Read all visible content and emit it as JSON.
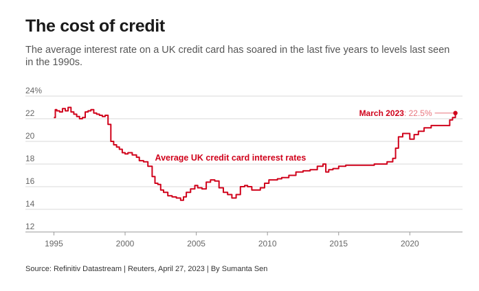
{
  "header": {
    "title": "The cost of credit",
    "subtitle": "The average interest rate on a UK credit card has soared in the last five years to levels last seen in the 1990s."
  },
  "footer": {
    "source": "Source: Refinitiv Datastream | Reuters, April 27, 2023 | By Sumanta Sen"
  },
  "chart_data": {
    "type": "line",
    "title": "The cost of credit",
    "xlabel": "",
    "ylabel": "",
    "xlim": [
      1993,
      2023.7
    ],
    "ylim": [
      12,
      24
    ],
    "x_ticks": [
      1995,
      2000,
      2005,
      2010,
      2015,
      2020
    ],
    "x_tick_labels": [
      "1995",
      "2000",
      "2005",
      "2010",
      "2015",
      "2020"
    ],
    "y_ticks": [
      12,
      14,
      16,
      18,
      20,
      22,
      24
    ],
    "y_tick_labels": [
      "12",
      "14",
      "16",
      "18",
      "20",
      "22",
      "24%"
    ],
    "grid": "horizontal",
    "series": [
      {
        "name": "Average UK credit card interest rates",
        "color": "#d0021b",
        "x": [
          1995.0,
          1995.1,
          1995.2,
          1995.4,
          1995.6,
          1995.8,
          1996.0,
          1996.2,
          1996.4,
          1996.6,
          1996.8,
          1997.0,
          1997.2,
          1997.4,
          1997.6,
          1997.8,
          1998.0,
          1998.2,
          1998.4,
          1998.6,
          1998.8,
          1999.0,
          1999.2,
          1999.4,
          1999.6,
          1999.8,
          2000.0,
          2000.2,
          2000.5,
          2000.8,
          2001.0,
          2001.3,
          2001.6,
          2001.9,
          2002.1,
          2002.3,
          2002.5,
          2002.7,
          2003.0,
          2003.3,
          2003.6,
          2003.9,
          2004.1,
          2004.3,
          2004.6,
          2004.9,
          2005.1,
          2005.4,
          2005.7,
          2006.0,
          2006.3,
          2006.6,
          2006.9,
          2007.2,
          2007.5,
          2007.8,
          2008.1,
          2008.4,
          2008.6,
          2008.9,
          2009.2,
          2009.5,
          2009.8,
          2010.1,
          2010.4,
          2010.7,
          2011.0,
          2011.5,
          2012.0,
          2012.5,
          2013.0,
          2013.5,
          2013.9,
          2014.1,
          2014.3,
          2014.6,
          2015.0,
          2015.5,
          2016.0,
          2016.5,
          2017.0,
          2017.5,
          2018.0,
          2018.4,
          2018.8,
          2019.0,
          2019.2,
          2019.5,
          2019.8,
          2020.0,
          2020.3,
          2020.6,
          2021.0,
          2021.5,
          2022.0,
          2022.5,
          2022.8,
          2023.0,
          2023.2
        ],
        "values": [
          22.1,
          22.8,
          22.7,
          22.6,
          22.9,
          22.7,
          23.0,
          22.6,
          22.4,
          22.2,
          22.0,
          22.1,
          22.6,
          22.7,
          22.8,
          22.5,
          22.4,
          22.3,
          22.2,
          22.3,
          21.5,
          20.0,
          19.7,
          19.5,
          19.3,
          19.0,
          18.9,
          19.0,
          18.8,
          18.6,
          18.3,
          18.2,
          17.8,
          16.9,
          16.3,
          16.2,
          15.7,
          15.5,
          15.2,
          15.1,
          15.0,
          14.8,
          15.1,
          15.5,
          15.8,
          16.1,
          15.9,
          15.8,
          16.4,
          16.6,
          16.5,
          15.9,
          15.5,
          15.3,
          15.0,
          15.3,
          16.0,
          16.1,
          16.0,
          15.7,
          15.7,
          15.9,
          16.3,
          16.6,
          16.6,
          16.7,
          16.8,
          17.0,
          17.3,
          17.4,
          17.5,
          17.8,
          18.0,
          17.3,
          17.5,
          17.6,
          17.8,
          17.9,
          17.9,
          17.9,
          17.9,
          18.0,
          18.0,
          18.2,
          18.5,
          19.4,
          20.4,
          20.7,
          20.7,
          20.2,
          20.6,
          20.9,
          21.2,
          21.4,
          21.4,
          21.4,
          21.9,
          22.1,
          22.5
        ]
      }
    ],
    "annotations": [
      {
        "date_text": "March 2023",
        "value_text": ": 22.5%",
        "x": 2023.2,
        "y": 22.5
      }
    ]
  }
}
